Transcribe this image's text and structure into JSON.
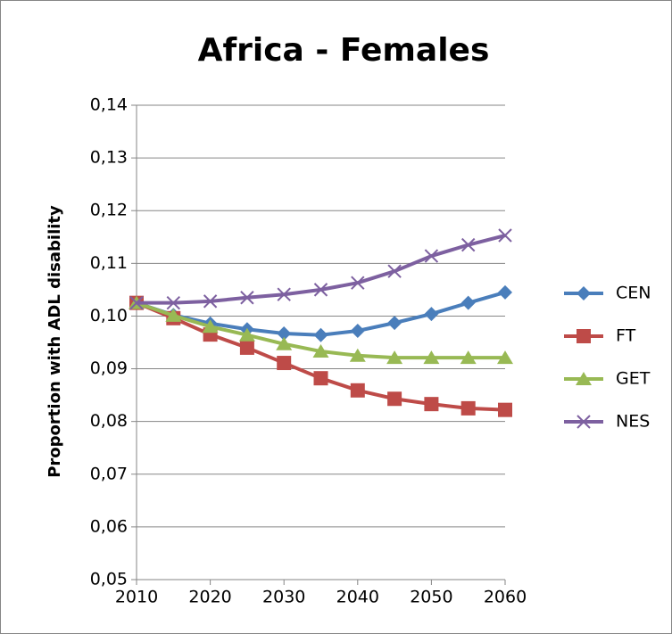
{
  "chart_data": {
    "type": "line",
    "title": "Africa - Females",
    "y_label": "Proportion with ADL disability",
    "x": [
      2010,
      2015,
      2020,
      2025,
      2030,
      2035,
      2040,
      2045,
      2050,
      2055,
      2060
    ],
    "xlim": [
      2010,
      2060
    ],
    "xticks": [
      2010,
      2020,
      2030,
      2040,
      2050,
      2060
    ],
    "ylim": [
      0.05,
      0.14
    ],
    "yticks": [
      {
        "value": 0.05,
        "label": "0,05"
      },
      {
        "value": 0.06,
        "label": "0,06"
      },
      {
        "value": 0.07,
        "label": "0,07"
      },
      {
        "value": 0.08,
        "label": "0,08"
      },
      {
        "value": 0.09,
        "label": "0,09"
      },
      {
        "value": 0.1,
        "label": "0,10"
      },
      {
        "value": 0.11,
        "label": "0,11"
      },
      {
        "value": 0.12,
        "label": "0,12"
      },
      {
        "value": 0.13,
        "label": "0,13"
      },
      {
        "value": 0.14,
        "label": "0,14"
      }
    ],
    "grid": true,
    "legend": "right",
    "series": [
      {
        "name": "CEN",
        "color": "#4a7ebb",
        "marker": "diamond",
        "values": [
          0.1025,
          0.1002,
          0.0986,
          0.0975,
          0.0967,
          0.0964,
          0.0972,
          0.0987,
          0.1004,
          0.1025,
          0.1045
        ]
      },
      {
        "name": "FT",
        "color": "#be4b48",
        "marker": "square",
        "values": [
          0.1025,
          0.0996,
          0.0965,
          0.094,
          0.0911,
          0.0882,
          0.0859,
          0.0843,
          0.0833,
          0.0825,
          0.0822
        ]
      },
      {
        "name": "GET",
        "color": "#98b954",
        "marker": "triangle",
        "values": [
          0.1025,
          0.1001,
          0.098,
          0.0964,
          0.0947,
          0.0933,
          0.0925,
          0.0921,
          0.0921,
          0.0921,
          0.0921
        ]
      },
      {
        "name": "NES",
        "color": "#7d60a0",
        "marker": "x",
        "values": [
          0.1025,
          0.1025,
          0.1028,
          0.1035,
          0.1041,
          0.105,
          0.1063,
          0.1085,
          0.1114,
          0.1135,
          0.1153
        ]
      }
    ]
  }
}
